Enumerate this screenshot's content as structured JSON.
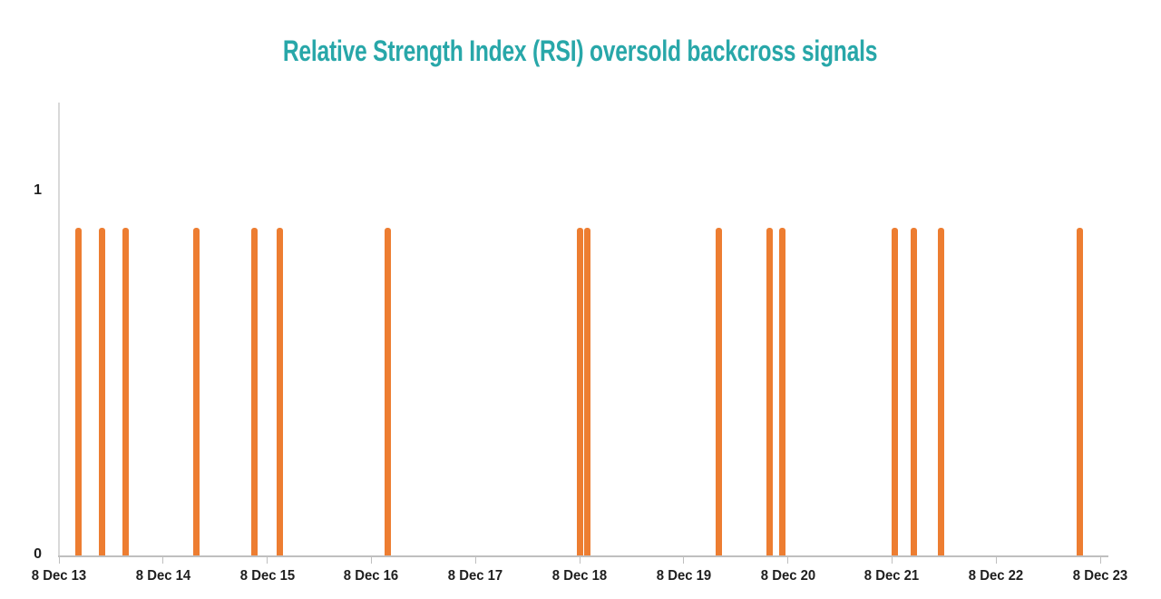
{
  "title": "Relative Strength Index (RSI) oversold backcross signals",
  "colors": {
    "title": "#28A7A9",
    "bar": "#ED7D31",
    "x_axis_line": "#BFBFBF",
    "y_axis_line": "#D9D9D9",
    "tick": "#BFBFBF",
    "tick_label": "#1F1F1F",
    "background": "#FFFFFF"
  },
  "chart_data": {
    "type": "bar",
    "title": "Relative Strength Index (RSI) oversold backcross signals",
    "xlabel": "",
    "ylabel": "",
    "x_tick_labels": [
      "8 Dec 13",
      "8 Dec 14",
      "8 Dec 15",
      "8 Dec 16",
      "8 Dec 17",
      "8 Dec 18",
      "8 Dec 19",
      "8 Dec 20",
      "8 Dec 21",
      "8 Dec 22",
      "8 Dec 23"
    ],
    "y_tick_labels": [
      "0",
      "1"
    ],
    "ylim": [
      0,
      1.25
    ],
    "x_range_years": [
      0,
      10.08
    ],
    "grid": false,
    "legend": "none",
    "series": [
      {
        "name": "RSI oversold backcross signal",
        "signal_value": 0.9,
        "x_years_after_first_tick": [
          0.183,
          0.418,
          0.636,
          1.324,
          1.873,
          2.117,
          3.162,
          5.0,
          5.078,
          6.333,
          6.821,
          6.943,
          8.031,
          8.214,
          8.475,
          9.808
        ],
        "approx_dates": [
          "2014-02",
          "2014-05",
          "2014-08",
          "2015-04",
          "2015-10",
          "2016-01",
          "2017-02",
          "2018-12",
          "2019-01",
          "2020-04",
          "2020-10",
          "2020-11",
          "2021-12",
          "2022-02",
          "2022-06",
          "2023-10"
        ]
      }
    ]
  }
}
